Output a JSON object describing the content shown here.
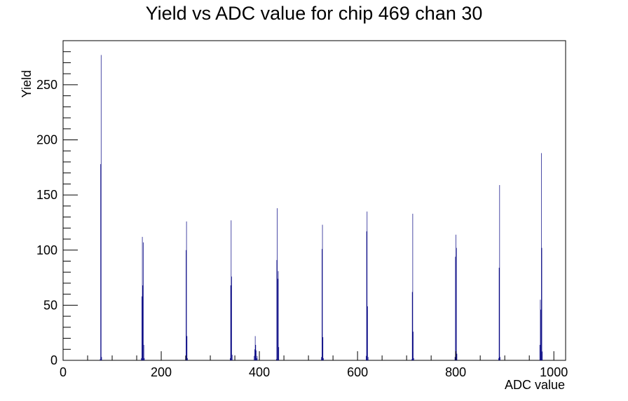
{
  "chart_data": {
    "type": "bar",
    "title": "Yield vs ADC value for chip 469 chan 30",
    "xlabel": "ADC value",
    "ylabel": "Yield",
    "xlim": [
      0,
      1024
    ],
    "ylim": [
      0,
      290
    ],
    "x_ticks": [
      0,
      200,
      400,
      600,
      800,
      1000
    ],
    "x_tick_labels": [
      "0",
      "200",
      "400",
      "600",
      "800",
      "1000"
    ],
    "y_ticks": [
      0,
      50,
      100,
      150,
      200,
      250
    ],
    "y_tick_labels": [
      "0",
      "50",
      "100",
      "150",
      "200",
      "250"
    ],
    "grid": false,
    "colors": {
      "series": "#000080",
      "axis": "#000000"
    },
    "series": [
      {
        "values": [
          [
            75,
            1
          ],
          [
            76,
            178
          ],
          [
            77,
            277
          ],
          [
            78,
            3
          ],
          [
            159,
            2
          ],
          [
            160,
            58
          ],
          [
            161,
            112
          ],
          [
            162,
            68
          ],
          [
            163,
            107
          ],
          [
            164,
            14
          ],
          [
            165,
            2
          ],
          [
            249,
            4
          ],
          [
            250,
            100
          ],
          [
            251,
            126
          ],
          [
            252,
            22
          ],
          [
            253,
            2
          ],
          [
            340,
            2
          ],
          [
            341,
            68
          ],
          [
            342,
            127
          ],
          [
            343,
            76
          ],
          [
            344,
            5
          ],
          [
            389,
            4
          ],
          [
            390,
            10
          ],
          [
            391,
            22
          ],
          [
            392,
            14
          ],
          [
            393,
            9
          ],
          [
            394,
            2
          ],
          [
            395,
            4
          ],
          [
            434,
            1
          ],
          [
            435,
            91
          ],
          [
            436,
            138
          ],
          [
            437,
            74
          ],
          [
            438,
            81
          ],
          [
            439,
            12
          ],
          [
            526,
            3
          ],
          [
            527,
            101
          ],
          [
            528,
            123
          ],
          [
            529,
            21
          ],
          [
            530,
            2
          ],
          [
            617,
            4
          ],
          [
            618,
            117
          ],
          [
            619,
            135
          ],
          [
            620,
            49
          ],
          [
            621,
            3
          ],
          [
            710,
            1
          ],
          [
            711,
            62
          ],
          [
            712,
            133
          ],
          [
            713,
            26
          ],
          [
            714,
            2
          ],
          [
            798,
            3
          ],
          [
            799,
            94
          ],
          [
            800,
            114
          ],
          [
            801,
            102
          ],
          [
            802,
            6
          ],
          [
            887,
            2
          ],
          [
            888,
            84
          ],
          [
            889,
            159
          ],
          [
            890,
            3
          ],
          [
            971,
            14
          ],
          [
            972,
            55
          ],
          [
            973,
            46
          ],
          [
            974,
            188
          ],
          [
            975,
            102
          ],
          [
            976,
            8
          ]
        ]
      }
    ]
  }
}
